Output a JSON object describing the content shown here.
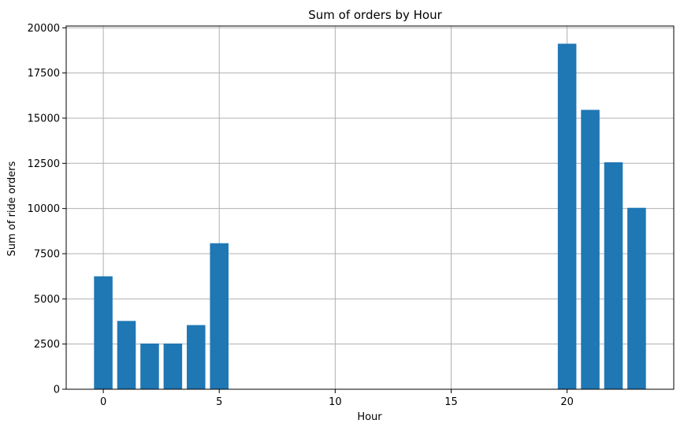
{
  "chart_data": {
    "type": "bar",
    "title": "Sum of orders by Hour",
    "xlabel": "Hour",
    "ylabel": "Sum of ride orders",
    "x": [
      0,
      1,
      2,
      3,
      4,
      5,
      20,
      21,
      22,
      23
    ],
    "values": [
      6250,
      3780,
      2530,
      2530,
      3550,
      8080,
      19120,
      15460,
      12560,
      10040
    ],
    "xlim": [
      -1.6,
      24.6
    ],
    "ylim": [
      0,
      20100
    ],
    "xticks": [
      0,
      5,
      10,
      15,
      20
    ],
    "yticks": [
      0,
      2500,
      5000,
      7500,
      10000,
      12500,
      15000,
      17500,
      20000
    ],
    "grid": true,
    "bar_color": "#1f77b4"
  }
}
